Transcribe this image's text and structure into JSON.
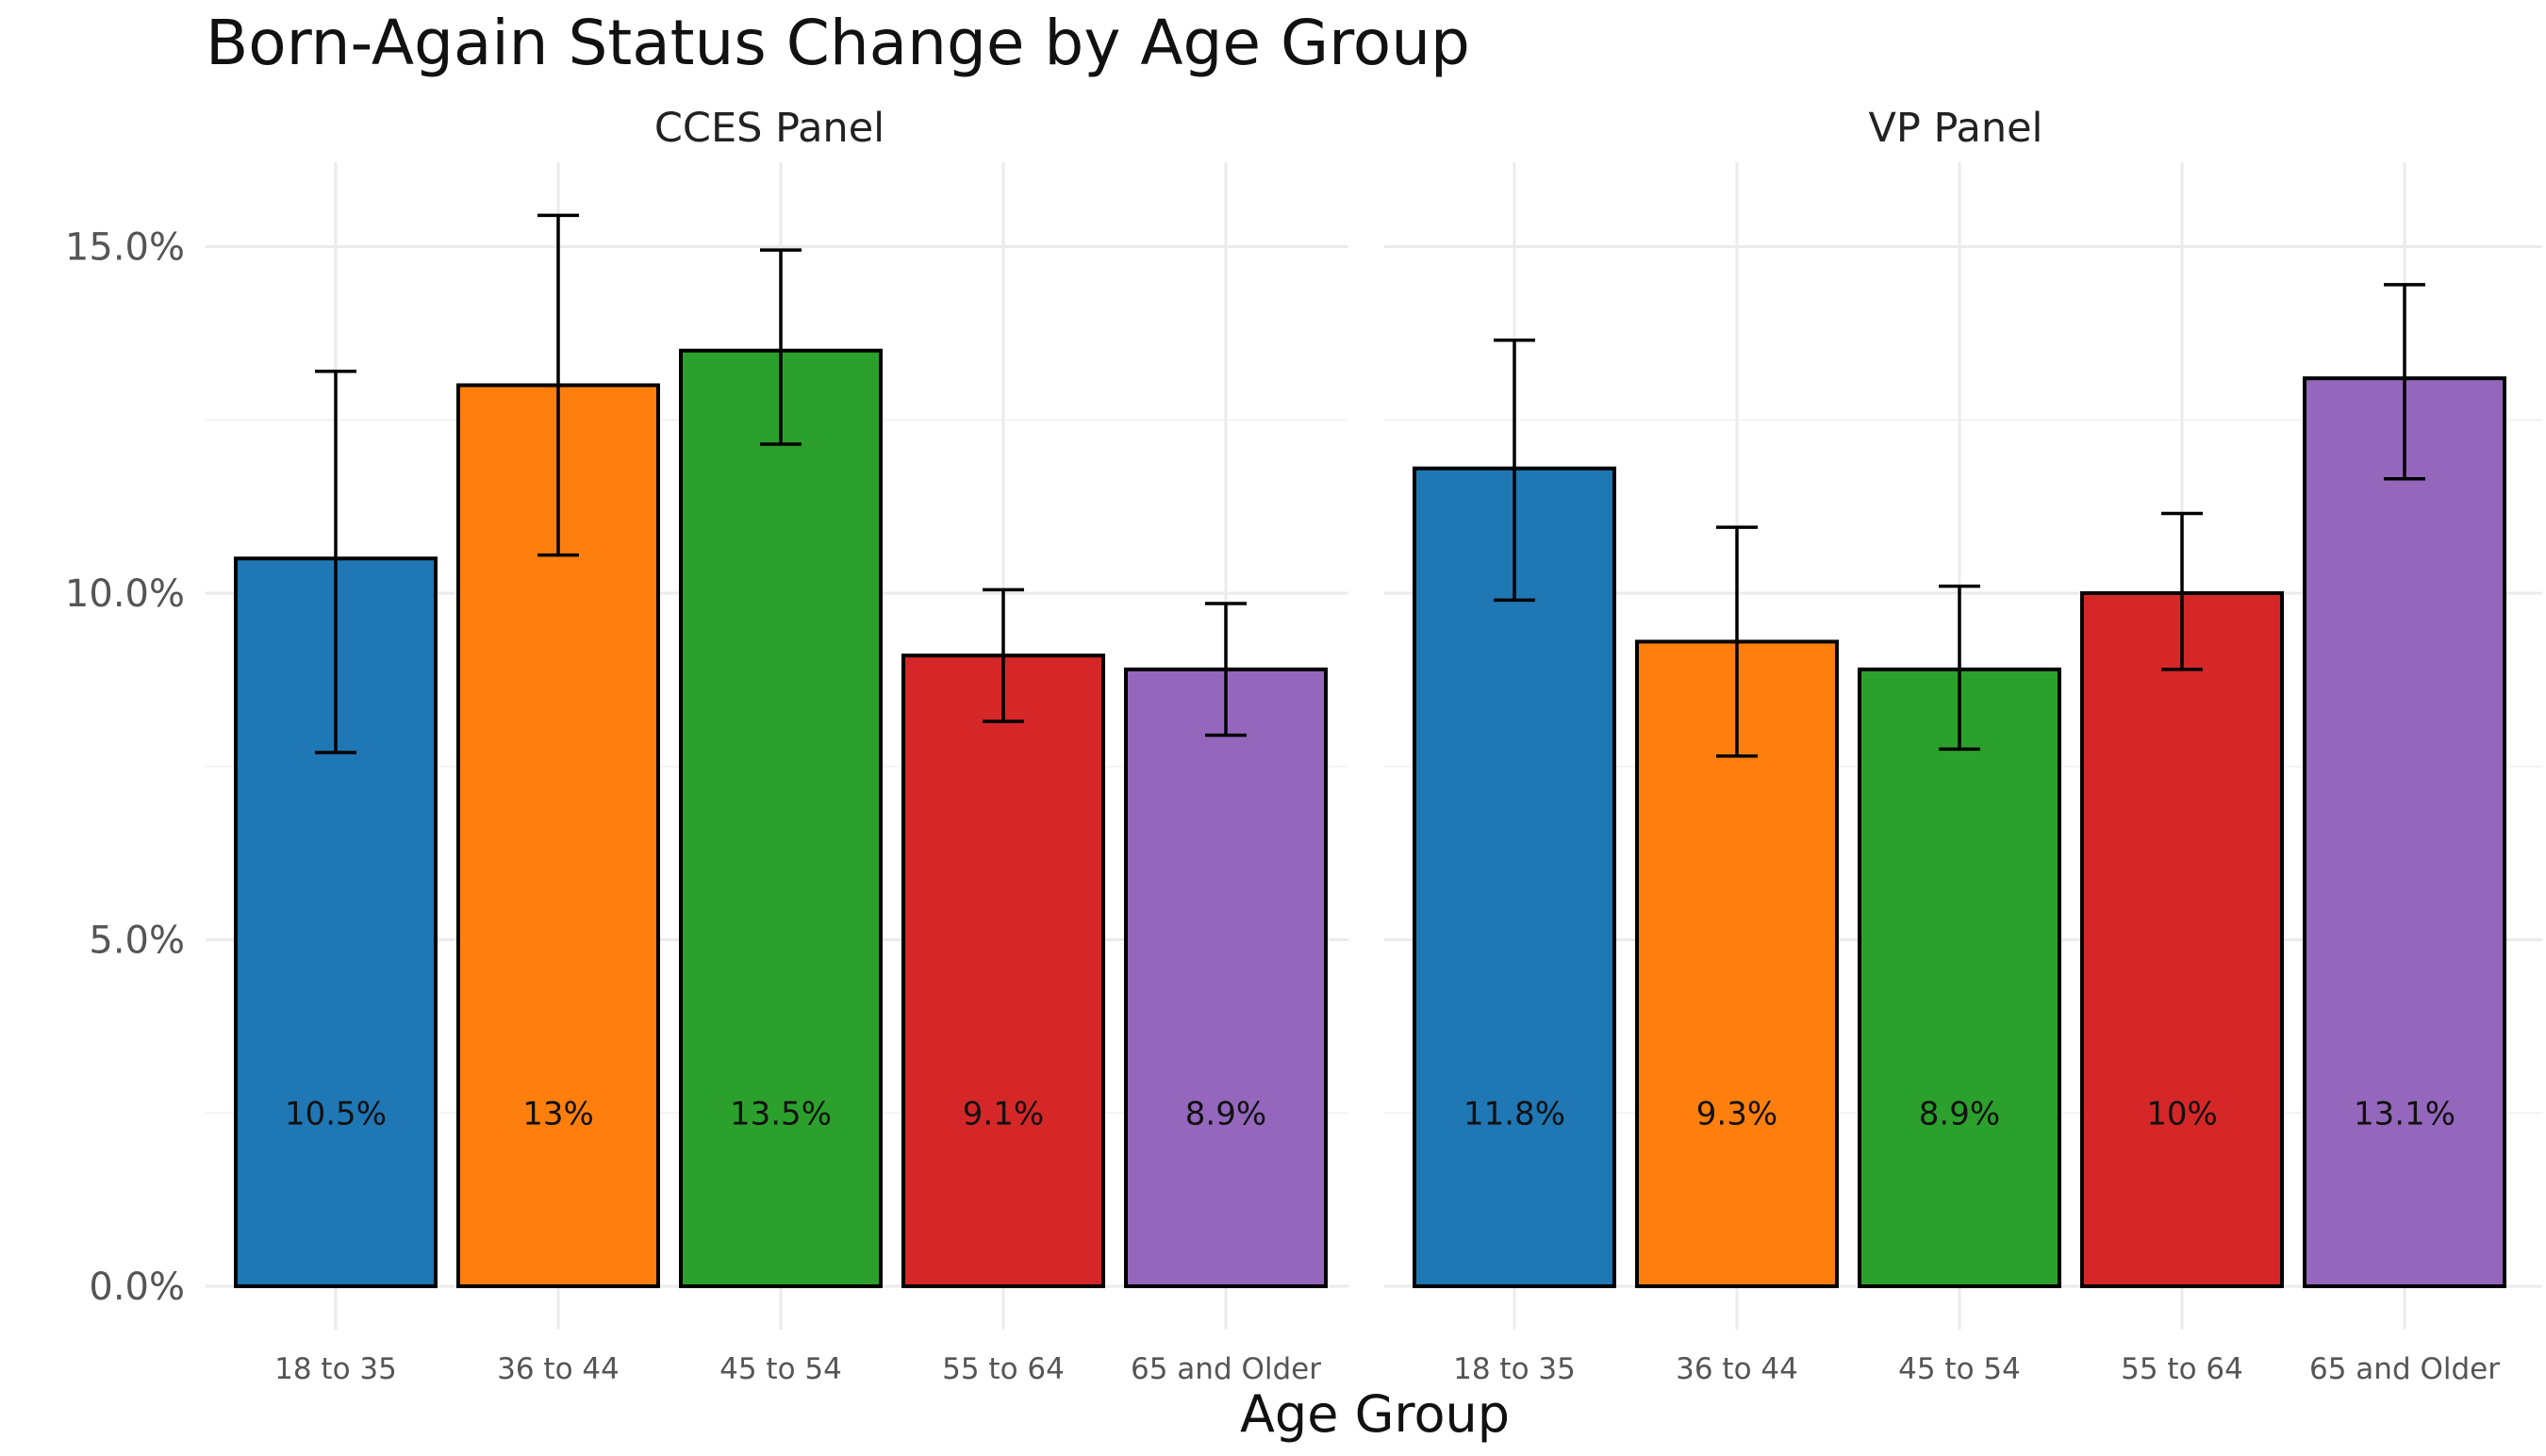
{
  "chart_data": {
    "type": "bar",
    "title": "Born-Again Status Change by Age Group",
    "xlabel": "Age Group",
    "ylabel": "",
    "ylim": [
      0,
      0.16
    ],
    "yticks": [
      0.0,
      0.05,
      0.1,
      0.15
    ],
    "ytick_labels": [
      "0.0%",
      "5.0%",
      "10.0%",
      "15.0%"
    ],
    "grid": true,
    "legend": "none",
    "categories": [
      "18 to 35",
      "36 to 44",
      "45 to 54",
      "55 to 64",
      "65 and Older"
    ],
    "colors": [
      "#1f77b4",
      "#ff7f0e",
      "#2ca02c",
      "#d62728",
      "#9467bd"
    ],
    "panels": [
      {
        "name": "CCES Panel",
        "values": [
          0.105,
          0.13,
          0.135,
          0.091,
          0.089
        ],
        "labels": [
          "10.5%",
          "13%",
          "13.5%",
          "9.1%",
          "8.9%"
        ],
        "err_low": [
          0.077,
          0.1055,
          0.1215,
          0.0815,
          0.0795
        ],
        "err_high": [
          0.132,
          0.1545,
          0.1495,
          0.1005,
          0.0985
        ]
      },
      {
        "name": "VP Panel",
        "values": [
          0.118,
          0.093,
          0.089,
          0.1,
          0.131
        ],
        "labels": [
          "11.8%",
          "9.3%",
          "8.9%",
          "10%",
          "13.1%"
        ],
        "err_low": [
          0.099,
          0.0765,
          0.0775,
          0.089,
          0.1165
        ],
        "err_high": [
          0.1365,
          0.1095,
          0.101,
          0.1115,
          0.1445
        ]
      }
    ]
  }
}
